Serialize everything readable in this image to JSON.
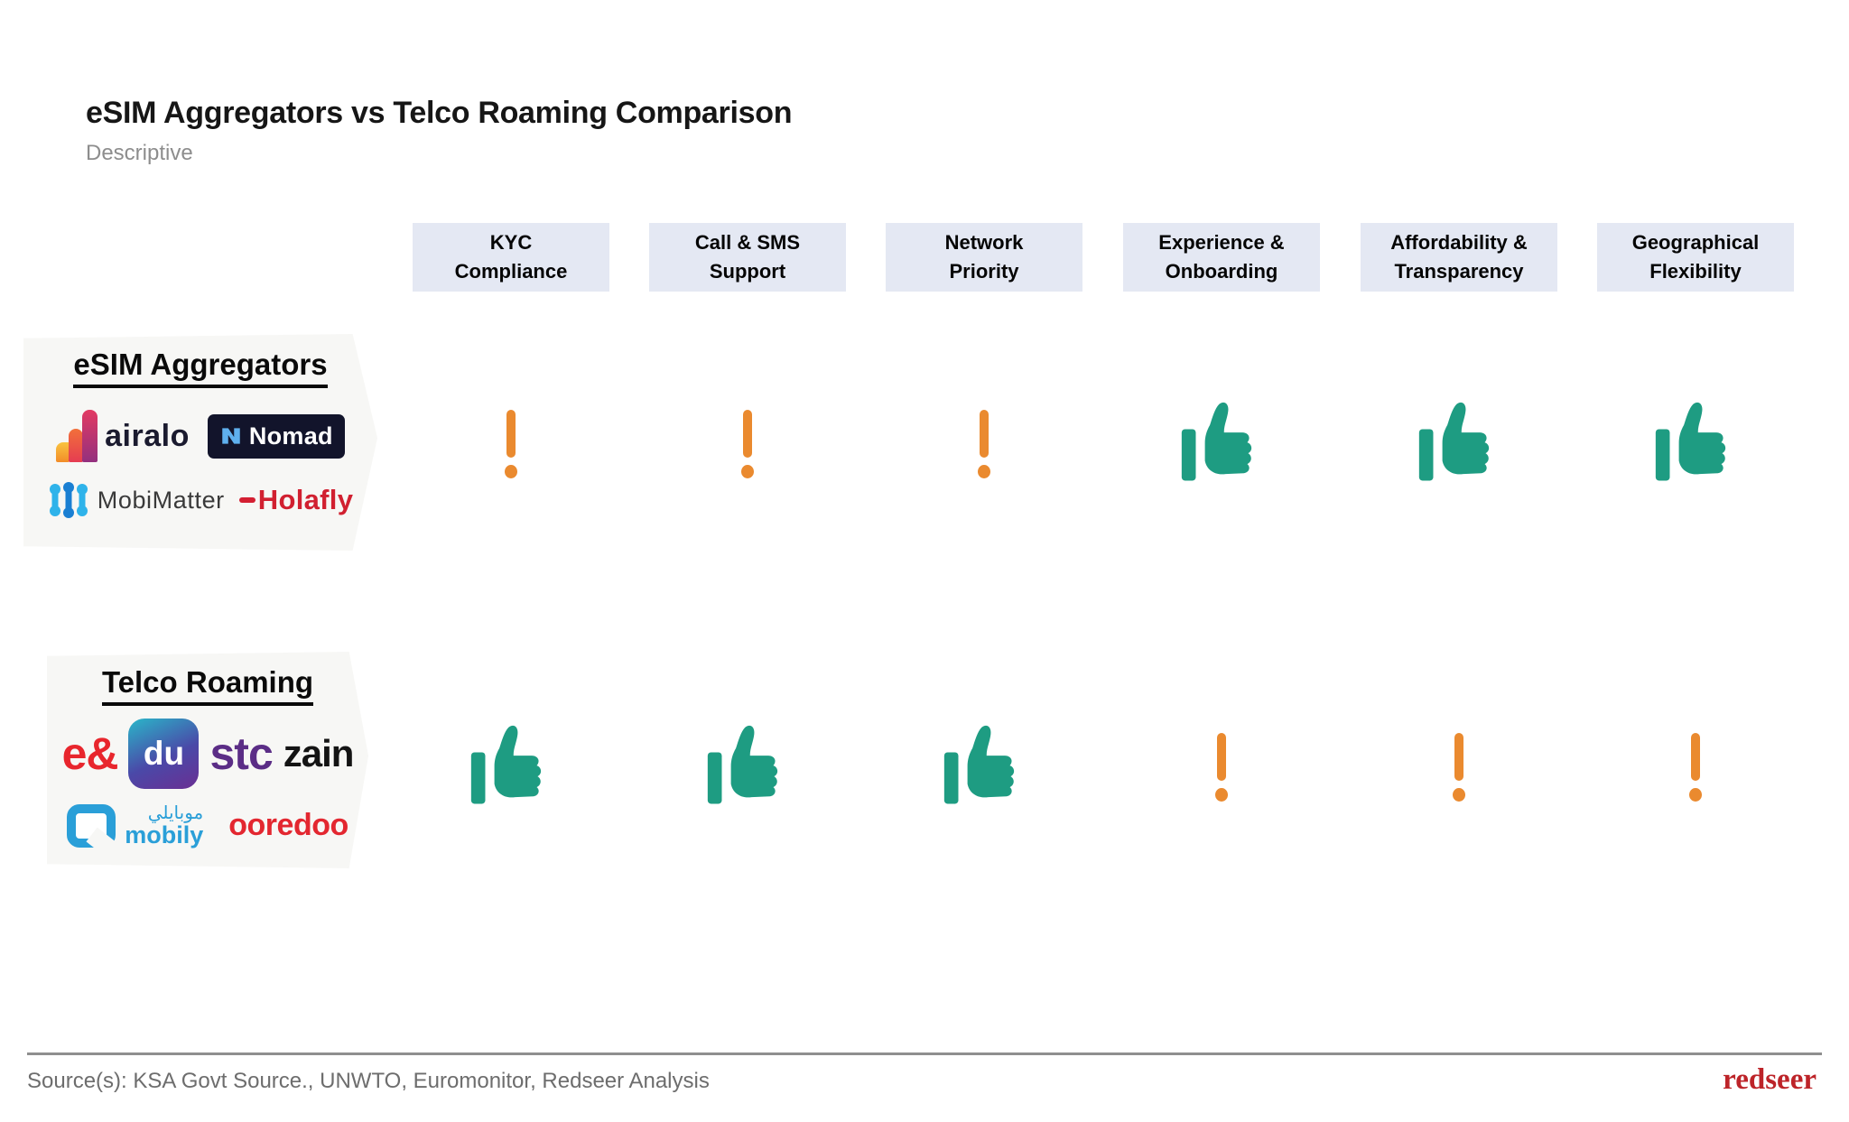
{
  "title": "eSIM Aggregators vs Telco Roaming Comparison",
  "subtitle": "Descriptive",
  "column_lines": [
    [
      "KYC",
      "Compliance"
    ],
    [
      "Call & SMS",
      "Support"
    ],
    [
      "Network",
      "Priority"
    ],
    [
      "Experience &",
      "Onboarding"
    ],
    [
      "Affordability &",
      "Transparency"
    ],
    [
      "Geographical",
      "Flexibility"
    ]
  ],
  "chart_data": {
    "type": "table",
    "title": "eSIM Aggregators vs Telco Roaming Comparison",
    "subtitle": "Descriptive",
    "columns": [
      "KYC Compliance",
      "Call & SMS Support",
      "Network Priority",
      "Experience & Onboarding",
      "Affordability & Transparency",
      "Geographical Flexibility"
    ],
    "rows": [
      {
        "name": "eSIM Aggregators",
        "values": [
          "caution",
          "caution",
          "caution",
          "positive",
          "positive",
          "positive"
        ]
      },
      {
        "name": "Telco Roaming",
        "values": [
          "positive",
          "positive",
          "positive",
          "caution",
          "caution",
          "caution"
        ]
      }
    ],
    "icon_map": {
      "positive": "thumbs-up-icon",
      "caution": "exclamation-icon"
    }
  },
  "logos": {
    "airalo": "airalo",
    "nomad_initial": "N",
    "nomad": "Nomad",
    "mobimatter": "MobiMatter",
    "holafly": "Holafly",
    "etisalat": "e&",
    "du": "du",
    "stc": "stc",
    "zain": "zain",
    "mobily_arabic": "موبايلي",
    "mobily": "mobily",
    "ooredoo": "ooredoo"
  },
  "colors": {
    "positive": "#1E9C82",
    "caution": "#EA8A2F",
    "header_bg": "#E4E8F3",
    "brand_red": "#BD2429"
  },
  "footer": {
    "source": "Source(s): KSA Govt Source., UNWTO, Euromonitor, Redseer Analysis",
    "brand": "redseer"
  }
}
